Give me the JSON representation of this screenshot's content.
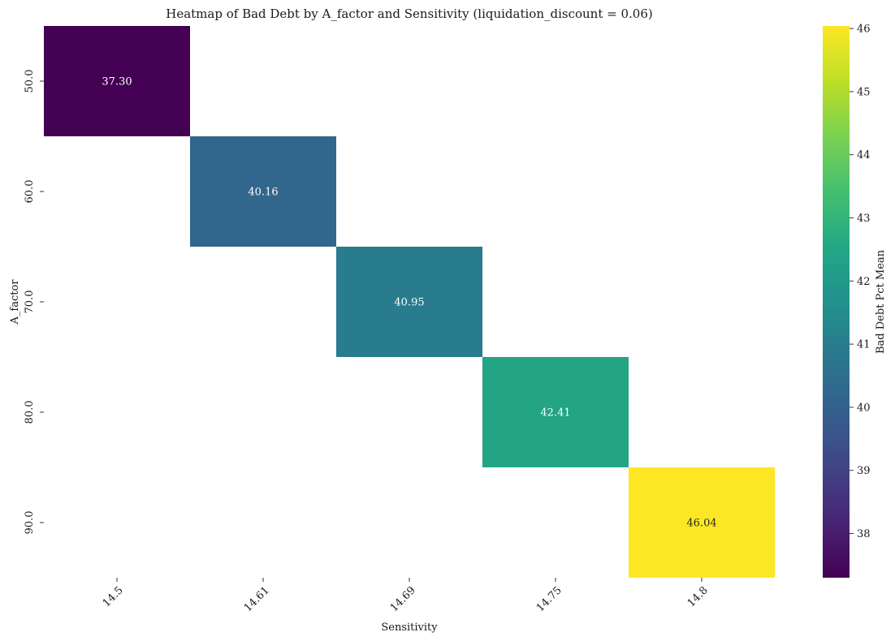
{
  "chart_data": {
    "type": "heatmap",
    "title": "Heatmap of Bad Debt by A_factor and Sensitivity (liquidation_discount = 0.06)",
    "xlabel": "Sensitivity",
    "ylabel": "A_factor",
    "x_categories": [
      "14.5",
      "14.61",
      "14.69",
      "14.75",
      "14.8"
    ],
    "y_categories": [
      "50.0",
      "60.0",
      "70.0",
      "80.0",
      "90.0"
    ],
    "cells": [
      {
        "x": "14.5",
        "y": "50.0",
        "value": 37.3,
        "label": "37.30"
      },
      {
        "x": "14.61",
        "y": "60.0",
        "value": 40.16,
        "label": "40.16"
      },
      {
        "x": "14.69",
        "y": "70.0",
        "value": 40.95,
        "label": "40.95"
      },
      {
        "x": "14.75",
        "y": "80.0",
        "value": 42.41,
        "label": "42.41"
      },
      {
        "x": "14.8",
        "y": "90.0",
        "value": 46.04,
        "label": "46.04"
      }
    ],
    "colormap": "viridis",
    "colorbar": {
      "label": "Bad Debt Pct Mean",
      "min": 37.3,
      "max": 46.04,
      "ticks": [
        "38",
        "39",
        "40",
        "41",
        "42",
        "43",
        "44",
        "45",
        "46"
      ]
    }
  }
}
